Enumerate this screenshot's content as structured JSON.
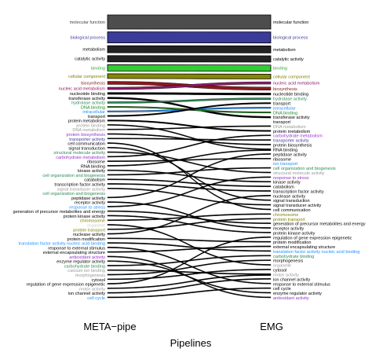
{
  "chart_data": {
    "type": "alluvial",
    "xlabel": "Pipelines",
    "axes": [
      "META−pipe",
      "EMG"
    ],
    "left_terms": [
      {
        "label": "molecular function",
        "color": "#444444"
      },
      {
        "label": "biological process",
        "color": "#3a3a9a"
      },
      {
        "label": "metabolism",
        "color": "#000000"
      },
      {
        "label": "catalytic activity",
        "color": "#000000"
      },
      {
        "label": "binding",
        "color": "#33aa33"
      },
      {
        "label": "cellular component",
        "color": "#808000"
      },
      {
        "label": "biosynthesis",
        "color": "#8b1a1a"
      },
      {
        "label": "nucleic acid metabolism",
        "color": "#8b1a6a"
      },
      {
        "label": "nucleotide binding",
        "color": "#000000"
      },
      {
        "label": "transferase activity",
        "color": "#000000"
      },
      {
        "label": "hydrolase activity",
        "color": "#2e8b57"
      },
      {
        "label": "DNA binding",
        "color": "#228b22"
      },
      {
        "label": "intracellular",
        "color": "#1e90ff"
      },
      {
        "label": "transport",
        "color": "#000000"
      },
      {
        "label": "protein metabolism",
        "color": "#000000"
      },
      {
        "label": "protein binding",
        "color": "#999999"
      },
      {
        "label": "DNA metabolism",
        "color": "#999999"
      },
      {
        "label": "protein biosynthesis",
        "color": "#9932cc"
      },
      {
        "label": "transporter activity",
        "color": "#3a3a9a"
      },
      {
        "label": "cell communication",
        "color": "#000000"
      },
      {
        "label": "signal transduction",
        "color": "#000000"
      },
      {
        "label": "structural molecule activity",
        "color": "#2e8b57"
      },
      {
        "label": "carbohydrate metabolism",
        "color": "#9932cc"
      },
      {
        "label": "ribosome",
        "color": "#000000"
      },
      {
        "label": "RNA binding",
        "color": "#000000"
      },
      {
        "label": "kinase activity",
        "color": "#000000"
      },
      {
        "label": "cell organization and biogenesis",
        "color": "#2e8b57"
      },
      {
        "label": "catabolism",
        "color": "#000000"
      },
      {
        "label": "transcription factor activity",
        "color": "#000000"
      },
      {
        "label": "signal transducer activity",
        "color": "#999999"
      },
      {
        "label": "cell organization and biogenesis",
        "color": "#2e8b57"
      },
      {
        "label": "peptidase activity",
        "color": "#000000"
      },
      {
        "label": "receptor activity",
        "color": "#000000"
      },
      {
        "label": "response to stress",
        "color": "#1e90ff"
      },
      {
        "label": "generation of precursor metabolites and energy",
        "color": "#000000"
      },
      {
        "label": "protein kinase activity",
        "color": "#000000"
      },
      {
        "label": "chromosome",
        "color": "#808000"
      },
      {
        "label": "organelle",
        "color": "#cccccc"
      },
      {
        "label": "protein transport",
        "color": "#808000"
      },
      {
        "label": "nuclease activity",
        "color": "#000000"
      },
      {
        "label": "protein modification",
        "color": "#000000"
      },
      {
        "label": "translation factor activity nucleic acid binding",
        "color": "#1e90ff"
      },
      {
        "label": "response to external stimulus",
        "color": "#000000"
      },
      {
        "label": "external encapsulating structure",
        "color": "#000000"
      },
      {
        "label": "antioxidant activity",
        "color": "#9932cc"
      },
      {
        "label": "enzyme regulator activity",
        "color": "#000000"
      },
      {
        "label": "carbohydrate binding",
        "color": "#2e8b57"
      },
      {
        "label": "calcium ion binding",
        "color": "#999999"
      },
      {
        "label": "morphogenesis",
        "color": "#999999"
      },
      {
        "label": "cytosol",
        "color": "#000000"
      },
      {
        "label": "regulation of gene expression epigenetic",
        "color": "#000000"
      },
      {
        "label": "motor activity",
        "color": "#999999"
      },
      {
        "label": "ion channel activity",
        "color": "#000000"
      },
      {
        "label": "cell cycle",
        "color": "#1e90ff"
      }
    ],
    "right_terms": [
      {
        "label": "molecular function",
        "color": "#000000"
      },
      {
        "label": "biological process",
        "color": "#3a3a9a"
      },
      {
        "label": "metabolism",
        "color": "#000000"
      },
      {
        "label": "catalytic activity",
        "color": "#000000"
      },
      {
        "label": "binding",
        "color": "#33aa33"
      },
      {
        "label": "cellular component",
        "color": "#808000"
      },
      {
        "label": "nucleic acid metabolism",
        "color": "#8b1a6a"
      },
      {
        "label": "biosynthesis",
        "color": "#8b1a1a"
      },
      {
        "label": "nucleotide binding",
        "color": "#000000"
      },
      {
        "label": "hydrolase activity",
        "color": "#2e8b57"
      },
      {
        "label": "transport",
        "color": "#000000"
      },
      {
        "label": "intracellular",
        "color": "#1e90ff"
      },
      {
        "label": "DNA binding",
        "color": "#228b22"
      },
      {
        "label": "transferase activity",
        "color": "#000000"
      },
      {
        "label": "transport",
        "color": "#000000"
      },
      {
        "label": "DNA metabolism",
        "color": "#999999"
      },
      {
        "label": "protein metabolism",
        "color": "#000000"
      },
      {
        "label": "carbohydrate metabolism",
        "color": "#9932cc"
      },
      {
        "label": "transporter activity",
        "color": "#3a3a9a"
      },
      {
        "label": "protein biosynthesis",
        "color": "#000000"
      },
      {
        "label": "RNA binding",
        "color": "#000000"
      },
      {
        "label": "peptidase activity",
        "color": "#000000"
      },
      {
        "label": "ribosome",
        "color": "#000000"
      },
      {
        "label": "ion transport",
        "color": "#1e90ff"
      },
      {
        "label": "cell organization and biogenesis",
        "color": "#2e8b57"
      },
      {
        "label": "structural molecule activity",
        "color": "#999999"
      },
      {
        "label": "response to stress",
        "color": "#9932cc"
      },
      {
        "label": "kinase activity",
        "color": "#000000"
      },
      {
        "label": "catabolism",
        "color": "#000000"
      },
      {
        "label": "transcription factor activity",
        "color": "#000000"
      },
      {
        "label": "nuclease activity",
        "color": "#000000"
      },
      {
        "label": "signal transduction",
        "color": "#000000"
      },
      {
        "label": "signal transducer activity",
        "color": "#000000"
      },
      {
        "label": "cell communication",
        "color": "#000000"
      },
      {
        "label": "chromosome",
        "color": "#808000"
      },
      {
        "label": "protein transport",
        "color": "#808000"
      },
      {
        "label": "generation of precursor metabolites and energy",
        "color": "#000000"
      },
      {
        "label": "receptor activity",
        "color": "#000000"
      },
      {
        "label": "protein kinase activity",
        "color": "#000000"
      },
      {
        "label": "regulation of gene expression epigenetic",
        "color": "#000000"
      },
      {
        "label": "protein modification",
        "color": "#000000"
      },
      {
        "label": "external encapsulating structure",
        "color": "#000000"
      },
      {
        "label": "translation factor activity nucleic acid binding",
        "color": "#1e90ff"
      },
      {
        "label": "carbohydrate binding",
        "color": "#2e8b57"
      },
      {
        "label": "morphogenesis",
        "color": "#000000"
      },
      {
        "label": "organelle",
        "color": "#999999"
      },
      {
        "label": "cytosol",
        "color": "#000000"
      },
      {
        "label": "motor activity",
        "color": "#999999"
      },
      {
        "label": "ion channel activity",
        "color": "#000000"
      },
      {
        "label": "response to external stimulus",
        "color": "#000000"
      },
      {
        "label": "cell cycle",
        "color": "#000000"
      },
      {
        "label": "enzyme regulator activity",
        "color": "#000000"
      },
      {
        "label": "antioxidant activity",
        "color": "#9932cc"
      }
    ],
    "ribbons": [
      {
        "from": 0,
        "to": 0,
        "weight": 18,
        "color": "#4d4d4d"
      },
      {
        "from": 1,
        "to": 1,
        "weight": 14,
        "color": "#3b3b99"
      },
      {
        "from": 2,
        "to": 2,
        "weight": 9,
        "color": "#222222"
      },
      {
        "from": 3,
        "to": 3,
        "weight": 8,
        "color": "#222222"
      },
      {
        "from": 4,
        "to": 4,
        "weight": 8,
        "color": "#33cc33"
      },
      {
        "from": 5,
        "to": 5,
        "weight": 6,
        "color": "#888800"
      },
      {
        "from": 6,
        "to": 7,
        "weight": 4,
        "color": "#8b1a1a"
      },
      {
        "from": 7,
        "to": 6,
        "weight": 3,
        "color": "#8b1a6a"
      },
      {
        "from": 8,
        "to": 8,
        "weight": 2.5,
        "color": "#000000"
      },
      {
        "from": 9,
        "to": 13,
        "weight": 2,
        "color": "#000000"
      },
      {
        "from": 10,
        "to": 9,
        "weight": 2,
        "color": "#2e8b57"
      },
      {
        "from": 11,
        "to": 12,
        "weight": 1.6,
        "color": "#228b22"
      },
      {
        "from": 12,
        "to": 11,
        "weight": 1.6,
        "color": "#1e90ff"
      },
      {
        "from": 13,
        "to": 10,
        "weight": 1.6,
        "color": "#000000"
      },
      {
        "from": 14,
        "to": 16,
        "weight": 1.6,
        "color": "#000000"
      },
      {
        "from": 15,
        "to": 20,
        "weight": 1.2,
        "color": "#000000"
      },
      {
        "from": 16,
        "to": 15,
        "weight": 1.2,
        "color": "#000000"
      },
      {
        "from": 17,
        "to": 19,
        "weight": 1.2,
        "color": "#000000"
      },
      {
        "from": 18,
        "to": 18,
        "weight": 1.2,
        "color": "#000000"
      },
      {
        "from": 19,
        "to": 33,
        "weight": 1.2,
        "color": "#000000"
      },
      {
        "from": 20,
        "to": 31,
        "weight": 1.2,
        "color": "#000000"
      },
      {
        "from": 21,
        "to": 25,
        "weight": 1.2,
        "color": "#000000"
      },
      {
        "from": 22,
        "to": 17,
        "weight": 1.2,
        "color": "#000000"
      },
      {
        "from": 23,
        "to": 22,
        "weight": 1.2,
        "color": "#000000"
      },
      {
        "from": 24,
        "to": 20,
        "weight": 1.2,
        "color": "#000000"
      },
      {
        "from": 25,
        "to": 27,
        "weight": 1.2,
        "color": "#000000"
      },
      {
        "from": 26,
        "to": 24,
        "weight": 1.2,
        "color": "#000000"
      },
      {
        "from": 27,
        "to": 28,
        "weight": 1.2,
        "color": "#000000"
      },
      {
        "from": 28,
        "to": 29,
        "weight": 1.2,
        "color": "#000000"
      },
      {
        "from": 29,
        "to": 32,
        "weight": 1.2,
        "color": "#000000"
      },
      {
        "from": 31,
        "to": 21,
        "weight": 1.2,
        "color": "#000000"
      },
      {
        "from": 32,
        "to": 37,
        "weight": 1.2,
        "color": "#000000"
      },
      {
        "from": 33,
        "to": 26,
        "weight": 1.2,
        "color": "#000000"
      },
      {
        "from": 34,
        "to": 36,
        "weight": 1.2,
        "color": "#000000"
      },
      {
        "from": 35,
        "to": 38,
        "weight": 1.2,
        "color": "#000000"
      },
      {
        "from": 36,
        "to": 34,
        "weight": 1.2,
        "color": "#000000"
      },
      {
        "from": 37,
        "to": 45,
        "weight": 1.2,
        "color": "#000000"
      },
      {
        "from": 38,
        "to": 35,
        "weight": 1.2,
        "color": "#000000"
      },
      {
        "from": 39,
        "to": 30,
        "weight": 1.2,
        "color": "#000000"
      },
      {
        "from": 40,
        "to": 40,
        "weight": 1.2,
        "color": "#000000"
      },
      {
        "from": 41,
        "to": 42,
        "weight": 1.2,
        "color": "#000000"
      },
      {
        "from": 42,
        "to": 49,
        "weight": 1.2,
        "color": "#000000"
      },
      {
        "from": 43,
        "to": 41,
        "weight": 1.2,
        "color": "#000000"
      },
      {
        "from": 44,
        "to": 52,
        "weight": 1.2,
        "color": "#000000"
      },
      {
        "from": 45,
        "to": 51,
        "weight": 1.2,
        "color": "#000000"
      },
      {
        "from": 46,
        "to": 43,
        "weight": 1.2,
        "color": "#000000"
      },
      {
        "from": 47,
        "to": 47,
        "weight": 1.2,
        "color": "#000000"
      },
      {
        "from": 48,
        "to": 44,
        "weight": 1.2,
        "color": "#000000"
      },
      {
        "from": 49,
        "to": 46,
        "weight": 1.2,
        "color": "#000000"
      },
      {
        "from": 50,
        "to": 39,
        "weight": 1.2,
        "color": "#000000"
      },
      {
        "from": 51,
        "to": 47,
        "weight": 1.2,
        "color": "#000000"
      },
      {
        "from": 52,
        "to": 48,
        "weight": 1.2,
        "color": "#000000"
      },
      {
        "from": 53,
        "to": 50,
        "weight": 1.2,
        "color": "#000000"
      }
    ]
  }
}
